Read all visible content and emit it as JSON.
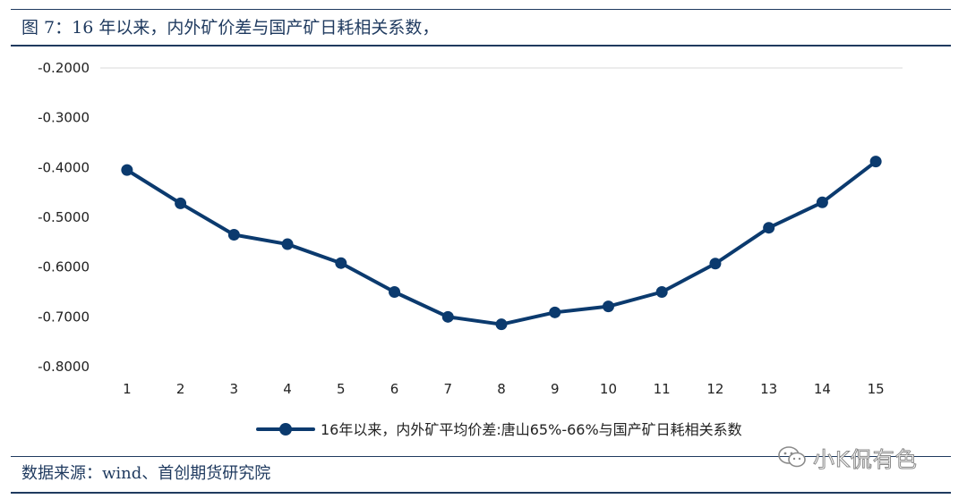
{
  "header": {
    "title": "图 7：16 年以来，内外矿价差与国产矿日耗相关系数，"
  },
  "footer": {
    "source": "数据来源：wind、首创期货研究院"
  },
  "watermark": {
    "text": "小K侃有色",
    "icon": "wechat-icon"
  },
  "colors": {
    "series": "#0b3a6e",
    "grid": "#d9d9d9",
    "frame": "#1f3a5f"
  },
  "chart_data": {
    "type": "line",
    "title": "",
    "xlabel": "",
    "ylabel": "",
    "x": [
      1,
      2,
      3,
      4,
      5,
      6,
      7,
      8,
      9,
      10,
      11,
      12,
      13,
      14,
      15
    ],
    "x_tick_labels": [
      "1",
      "2",
      "3",
      "4",
      "5",
      "6",
      "7",
      "8",
      "9",
      "10",
      "11",
      "12",
      "13",
      "14",
      "15"
    ],
    "ylim": [
      -0.8,
      -0.2
    ],
    "y_ticks": [
      -0.2,
      -0.3,
      -0.4,
      -0.5,
      -0.6,
      -0.7,
      -0.8
    ],
    "y_tick_labels": [
      "-0.2000",
      "-0.3000",
      "-0.4000",
      "-0.5000",
      "-0.6000",
      "-0.7000",
      "-0.8000"
    ],
    "grid": "top line only",
    "legend_position": "bottom-center",
    "series": [
      {
        "name": "16年以来，内外矿平均价差:唐山65%-66%与国产矿日耗相关系数",
        "values": [
          -0.405,
          -0.472,
          -0.535,
          -0.554,
          -0.592,
          -0.65,
          -0.7,
          -0.715,
          -0.691,
          -0.679,
          -0.65,
          -0.593,
          -0.521,
          -0.47,
          -0.388
        ],
        "marker": "circle"
      }
    ]
  }
}
